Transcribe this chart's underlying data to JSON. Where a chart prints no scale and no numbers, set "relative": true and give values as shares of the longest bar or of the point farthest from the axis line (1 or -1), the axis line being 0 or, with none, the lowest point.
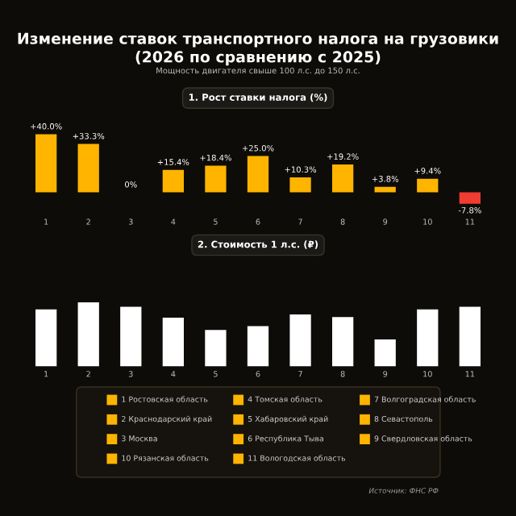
{
  "chart_data": [
    {
      "type": "bar",
      "title": "Изменение ставок транспортного налога на грузовики\n(2026 по сравнению с 2025)",
      "subtitle": "Мощность двигателя свыше 100 л.с. до 150 л.с.",
      "xlabel": "1. Рост ставки налога (%)",
      "categories": [
        "1",
        "2",
        "3",
        "4",
        "5",
        "6",
        "7",
        "8",
        "9",
        "10",
        "11"
      ],
      "values": [
        40.0,
        33.3,
        0,
        15.4,
        18.4,
        25.0,
        10.3,
        19.2,
        3.8,
        9.4,
        -7.8
      ],
      "colors": [
        "#ffb400",
        "#ffb400",
        "#ffb400",
        "#ffb400",
        "#ffb400",
        "#ffb400",
        "#ffb400",
        "#ffb400",
        "#ffb400",
        "#ffb400",
        "#f03c32"
      ],
      "value_labels": [
        "+40.0%",
        "+33.3%",
        "0%",
        "+15.4%",
        "+18.4%",
        "+25.0%",
        "+10.3%",
        "+19.2%",
        "+3.8%",
        "+9.4%",
        "-7.8%"
      ]
    },
    {
      "type": "bar",
      "xlabel": "2. Стоимость 1 л.с. (₽)",
      "relative": true,
      "categories": [
        "1",
        "2",
        "3",
        "4",
        "5",
        "6",
        "7",
        "8",
        "9",
        "10",
        "11"
      ],
      "values": [
        0.89,
        1,
        0.93,
        0.76,
        0.57,
        0.63,
        0.81,
        0.77,
        0.42,
        0.89,
        0.93
      ],
      "color": "#ffffff"
    },
    {
      "type": "other",
      "annotations": [
        "1 Ростовская область",
        "2 Краснодарский край",
        "3 Москва",
        "10 Рязанская область",
        "4 Томская область",
        "5 Хабаровский край",
        "6 Республика Тыва",
        "11 Вологодская область",
        "7 Волгоградская область",
        "8 Севастополь",
        "9 Свердловская область",
        "Источник: ФНС РФ"
      ]
    }
  ]
}
